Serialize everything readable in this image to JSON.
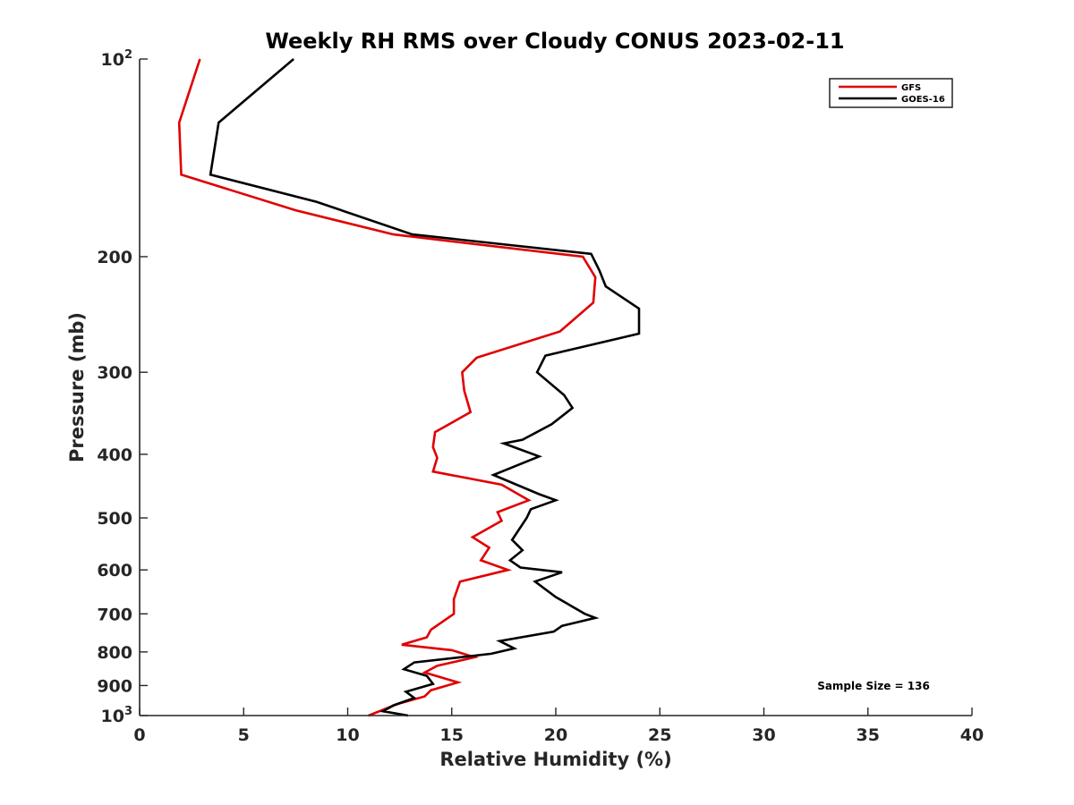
{
  "chart_data": {
    "type": "line",
    "title": "Weekly RH RMS over Cloudy CONUS 2023-02-11",
    "xlabel": "Relative Humidity (%)",
    "ylabel": "Pressure (mb)",
    "xlim": [
      0,
      40
    ],
    "ylim": [
      100,
      1000
    ],
    "y_scale": "log",
    "y_reversed": true,
    "grid": false,
    "legend_position": "top-right",
    "x_ticks": [
      0,
      5,
      10,
      15,
      20,
      25,
      30,
      35,
      40
    ],
    "x_tick_labels": [
      "0",
      "5",
      "10",
      "15",
      "20",
      "25",
      "30",
      "35",
      "40"
    ],
    "y_ticks": [
      100,
      200,
      300,
      400,
      500,
      600,
      700,
      800,
      900,
      1000
    ],
    "y_tick_labels": [
      {
        "base": "10",
        "sup": "2"
      },
      {
        "base": "200",
        "sup": ""
      },
      {
        "base": "300",
        "sup": ""
      },
      {
        "base": "400",
        "sup": ""
      },
      {
        "base": "500",
        "sup": ""
      },
      {
        "base": "600",
        "sup": ""
      },
      {
        "base": "700",
        "sup": ""
      },
      {
        "base": "800",
        "sup": ""
      },
      {
        "base": "900",
        "sup": ""
      },
      {
        "base": "10",
        "sup": "3"
      }
    ],
    "annotation": "Sample Size = 136",
    "series": [
      {
        "name": "GFS",
        "color": "#e00000",
        "points": [
          [
            2.9,
            100
          ],
          [
            1.9,
            125
          ],
          [
            2.0,
            150
          ],
          [
            7.5,
            170
          ],
          [
            12.2,
            185
          ],
          [
            21.3,
            200
          ],
          [
            21.9,
            215
          ],
          [
            21.8,
            235
          ],
          [
            20.2,
            260
          ],
          [
            16.2,
            285
          ],
          [
            15.5,
            300
          ],
          [
            15.6,
            320
          ],
          [
            15.9,
            345
          ],
          [
            14.2,
            370
          ],
          [
            14.1,
            390
          ],
          [
            14.3,
            405
          ],
          [
            14.1,
            425
          ],
          [
            17.4,
            445
          ],
          [
            18.7,
            470
          ],
          [
            17.2,
            490
          ],
          [
            17.4,
            505
          ],
          [
            16.0,
            535
          ],
          [
            16.8,
            555
          ],
          [
            16.4,
            580
          ],
          [
            17.7,
            600
          ],
          [
            15.4,
            625
          ],
          [
            15.1,
            665
          ],
          [
            15.1,
            700
          ],
          [
            14.0,
            740
          ],
          [
            13.8,
            760
          ],
          [
            12.6,
            780
          ],
          [
            15.0,
            795
          ],
          [
            16.1,
            815
          ],
          [
            14.3,
            840
          ],
          [
            13.7,
            860
          ],
          [
            15.3,
            890
          ],
          [
            14.0,
            915
          ],
          [
            13.7,
            935
          ],
          [
            12.4,
            960
          ],
          [
            11.0,
            1000
          ]
        ]
      },
      {
        "name": "GOES-16",
        "color": "#000000",
        "points": [
          [
            7.4,
            100
          ],
          [
            3.8,
            125
          ],
          [
            3.4,
            150
          ],
          [
            8.5,
            165
          ],
          [
            13.1,
            185
          ],
          [
            21.7,
            198
          ],
          [
            22.1,
            210
          ],
          [
            22.4,
            222
          ],
          [
            24.0,
            240
          ],
          [
            24.0,
            262
          ],
          [
            19.5,
            283
          ],
          [
            19.1,
            300
          ],
          [
            20.4,
            325
          ],
          [
            20.8,
            340
          ],
          [
            19.8,
            360
          ],
          [
            18.4,
            380
          ],
          [
            17.5,
            385
          ],
          [
            19.2,
            403
          ],
          [
            17.0,
            430
          ],
          [
            19.2,
            460
          ],
          [
            20.0,
            470
          ],
          [
            18.8,
            485
          ],
          [
            18.6,
            500
          ],
          [
            17.9,
            540
          ],
          [
            18.4,
            560
          ],
          [
            17.8,
            580
          ],
          [
            18.3,
            595
          ],
          [
            20.3,
            605
          ],
          [
            19.0,
            625
          ],
          [
            20.0,
            660
          ],
          [
            21.4,
            700
          ],
          [
            21.9,
            710
          ],
          [
            20.3,
            730
          ],
          [
            19.9,
            745
          ],
          [
            17.3,
            770
          ],
          [
            18.0,
            790
          ],
          [
            16.9,
            805
          ],
          [
            13.2,
            830
          ],
          [
            12.7,
            850
          ],
          [
            13.8,
            870
          ],
          [
            14.1,
            895
          ],
          [
            12.8,
            920
          ],
          [
            13.2,
            940
          ],
          [
            12.2,
            965
          ],
          [
            11.7,
            985
          ],
          [
            12.9,
            1000
          ]
        ]
      }
    ]
  }
}
